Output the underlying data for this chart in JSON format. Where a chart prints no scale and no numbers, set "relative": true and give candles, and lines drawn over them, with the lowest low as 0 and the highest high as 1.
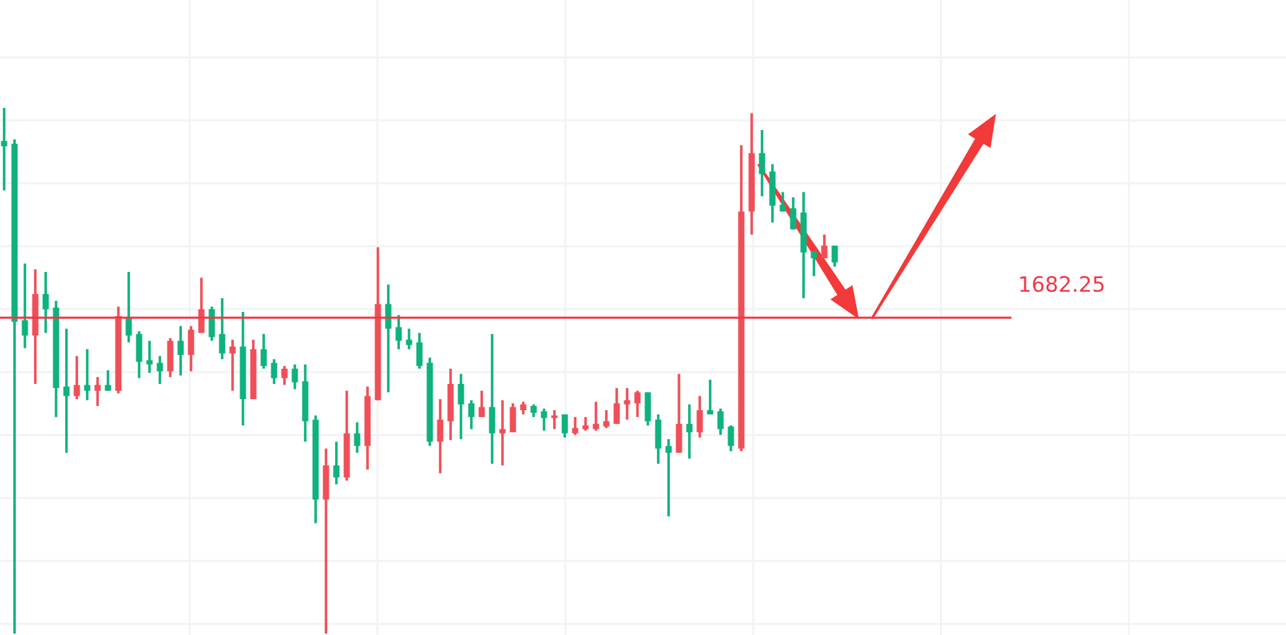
{
  "chart_data": {
    "type": "candlestick",
    "relative": true,
    "grid": true,
    "annotations": [
      "1682.25"
    ],
    "categories": [
      null,
      null,
      null,
      null,
      null,
      null,
      null,
      null,
      null,
      null,
      null,
      null,
      null,
      null,
      null,
      null,
      null,
      null,
      null,
      null,
      null,
      null,
      null,
      null,
      null,
      null,
      null,
      null,
      null,
      null,
      null,
      null,
      null,
      null,
      null,
      null,
      null,
      null,
      null,
      null,
      null,
      null,
      null,
      null,
      null,
      null,
      null,
      null,
      null,
      null,
      null,
      null,
      null,
      null,
      null,
      null,
      null,
      null,
      null,
      null,
      null,
      null,
      null,
      null,
      null,
      null,
      null,
      null,
      null,
      null,
      null,
      null,
      null,
      null,
      null,
      null,
      null,
      null,
      null,
      null,
      null
    ],
    "ohlc": [
      [
        0.937,
        1.0,
        0.843,
        0.927
      ],
      [
        0.932,
        0.94,
        0,
        0.593
      ],
      [
        0.596,
        0.704,
        0.543,
        0.567
      ],
      [
        0.567,
        0.693,
        0.475,
        0.646
      ],
      [
        0.646,
        0.688,
        0.572,
        0.617
      ],
      [
        0.62,
        0.633,
        0.412,
        0.467
      ],
      [
        0.47,
        0.58,
        0.344,
        0.452
      ],
      [
        0.452,
        0.528,
        0.446,
        0.473
      ],
      [
        0.473,
        0.541,
        0.444,
        0.462
      ],
      [
        0.462,
        0.488,
        0.433,
        0.473
      ],
      [
        0.473,
        0.501,
        0.462,
        0.462
      ],
      [
        0.462,
        0.622,
        0.457,
        0.604
      ],
      [
        0.601,
        0.688,
        0.554,
        0.567
      ],
      [
        0.57,
        0.575,
        0.486,
        0.517
      ],
      [
        0.52,
        0.557,
        0.496,
        0.512
      ],
      [
        0.515,
        0.528,
        0.475,
        0.499
      ],
      [
        0.499,
        0.562,
        0.488,
        0.557
      ],
      [
        0.557,
        0.585,
        0.491,
        0.53
      ],
      [
        0.53,
        0.585,
        0.499,
        0.578
      ],
      [
        0.572,
        0.677,
        0.572,
        0.617
      ],
      [
        0.617,
        0.622,
        0.557,
        0.564
      ],
      [
        0.57,
        0.638,
        0.522,
        0.533
      ],
      [
        0.533,
        0.559,
        0.462,
        0.546
      ],
      [
        0.546,
        0.612,
        0.396,
        0.446
      ],
      [
        0.446,
        0.559,
        0.446,
        0.541
      ],
      [
        0.541,
        0.57,
        0.504,
        0.509
      ],
      [
        0.515,
        0.522,
        0.475,
        0.486
      ],
      [
        0.486,
        0.509,
        0.473,
        0.504
      ],
      [
        0.504,
        0.512,
        0.465,
        0.478
      ],
      [
        0.48,
        0.512,
        0.365,
        0.404
      ],
      [
        0.407,
        0.415,
        0.21,
        0.255
      ],
      [
        0.255,
        0.352,
        0,
        0.32
      ],
      [
        0.32,
        0.365,
        0.284,
        0.297
      ],
      [
        0.297,
        0.462,
        0.291,
        0.381
      ],
      [
        0.381,
        0.402,
        0.344,
        0.357
      ],
      [
        0.357,
        0.47,
        0.312,
        0.452
      ],
      [
        0.444,
        0.735,
        0.444,
        0.627
      ],
      [
        0.627,
        0.664,
        0.459,
        0.58
      ],
      [
        0.583,
        0.606,
        0.541,
        0.557
      ],
      [
        0.559,
        0.58,
        0.541,
        0.549
      ],
      [
        0.554,
        0.572,
        0.504,
        0.509
      ],
      [
        0.515,
        0.525,
        0.357,
        0.365
      ],
      [
        0.365,
        0.446,
        0.305,
        0.407
      ],
      [
        0.404,
        0.504,
        0.368,
        0.475
      ],
      [
        0.475,
        0.494,
        0.37,
        0.436
      ],
      [
        0.438,
        0.444,
        0.389,
        0.412
      ],
      [
        0.412,
        0.462,
        0.412,
        0.431
      ],
      [
        0.431,
        0.57,
        0.323,
        0.381
      ],
      [
        0.381,
        0.444,
        0.32,
        0.389
      ],
      [
        0.383,
        0.438,
        0.383,
        0.431
      ],
      [
        0.425,
        0.441,
        0.417,
        0.436
      ],
      [
        0.433,
        0.436,
        0.412,
        0.42
      ],
      [
        0.423,
        0.428,
        0.386,
        0.41
      ],
      [
        0.41,
        0.425,
        0.389,
        0.415
      ],
      [
        0.417,
        0.417,
        0.373,
        0.381
      ],
      [
        0.381,
        0.412,
        0.378,
        0.391
      ],
      [
        0.389,
        0.412,
        0.386,
        0.396
      ],
      [
        0.389,
        0.441,
        0.386,
        0.399
      ],
      [
        0.394,
        0.425,
        0.391,
        0.404
      ],
      [
        0.399,
        0.467,
        0.399,
        0.438
      ],
      [
        0.436,
        0.467,
        0.407,
        0.444
      ],
      [
        0.438,
        0.462,
        0.412,
        0.459
      ],
      [
        0.459,
        0.459,
        0.396,
        0.404
      ],
      [
        0.407,
        0.417,
        0.323,
        0.352
      ],
      [
        0.357,
        0.37,
        0.223,
        0.344
      ],
      [
        0.344,
        0.494,
        0.344,
        0.399
      ],
      [
        0.399,
        0.436,
        0.333,
        0.383
      ],
      [
        0.383,
        0.452,
        0.373,
        0.425
      ],
      [
        0.425,
        0.483,
        0.417,
        0.417
      ],
      [
        0.423,
        0.428,
        0.378,
        0.389
      ],
      [
        0.394,
        0.396,
        0.347,
        0.357
      ],
      [
        0.352,
        0.929,
        0.347,
        0.803
      ],
      [
        0.803,
        0.99,
        0.759,
        0.914
      ],
      [
        0.914,
        0.958,
        0.832,
        0.874
      ],
      [
        0.879,
        0.893,
        0.782,
        0.814
      ],
      [
        0.816,
        0.84,
        0.803,
        0.803
      ],
      [
        0.809,
        0.83,
        0.769,
        0.769
      ],
      [
        0.801,
        0.84,
        0.638,
        0.725
      ],
      [
        0.727,
        0.727,
        0.68,
        0.714
      ],
      [
        0.714,
        0.759,
        0.714,
        0.738
      ],
      [
        0.738,
        0.738,
        0.698,
        0.706
      ]
    ],
    "colors": [
      "#0fb27f",
      "#0fb27f",
      "#0fb27f",
      "#ef4f58",
      "#0fb27f",
      "#0fb27f",
      "#0fb27f",
      "#ef4f58",
      "#0fb27f",
      "#ef4f58",
      "#0fb27f",
      "#ef4f58",
      "#0fb27f",
      "#0fb27f",
      "#0fb27f",
      "#0fb27f",
      "#ef4f58",
      "#0fb27f",
      "#ef4f58",
      "#ef4f58",
      "#0fb27f",
      "#0fb27f",
      "#ef4f58",
      "#0fb27f",
      "#ef4f58",
      "#0fb27f",
      "#0fb27f",
      "#ef4f58",
      "#0fb27f",
      "#0fb27f",
      "#0fb27f",
      "#ef4f58",
      "#0fb27f",
      "#ef4f58",
      "#0fb27f",
      "#ef4f58",
      "#ef4f58",
      "#0fb27f",
      "#0fb27f",
      "#0fb27f",
      "#0fb27f",
      "#0fb27f",
      "#ef4f58",
      "#ef4f58",
      "#0fb27f",
      "#0fb27f",
      "#ef4f58",
      "#0fb27f",
      "#ef4f58",
      "#ef4f58",
      "#ef4f58",
      "#0fb27f",
      "#0fb27f",
      "#ef4f58",
      "#0fb27f",
      "#ef4f58",
      "#ef4f58",
      "#ef4f58",
      "#ef4f58",
      "#ef4f58",
      "#ef4f58",
      "#ef4f58",
      "#0fb27f",
      "#0fb27f",
      "#0fb27f",
      "#ef4f58",
      "#0fb27f",
      "#ef4f58",
      "#0fb27f",
      "#0fb27f",
      "#0fb27f",
      "#ef4f58",
      "#ef4f58",
      "#0fb27f",
      "#0fb27f",
      "#0fb27f",
      "#0fb27f",
      "#0fb27f",
      "#0fb27f",
      "#ef4f58",
      "#0fb27f"
    ],
    "ref_lines": [
      {
        "axis": "y",
        "value": 0.601,
        "color": "#f23645"
      }
    ]
  }
}
